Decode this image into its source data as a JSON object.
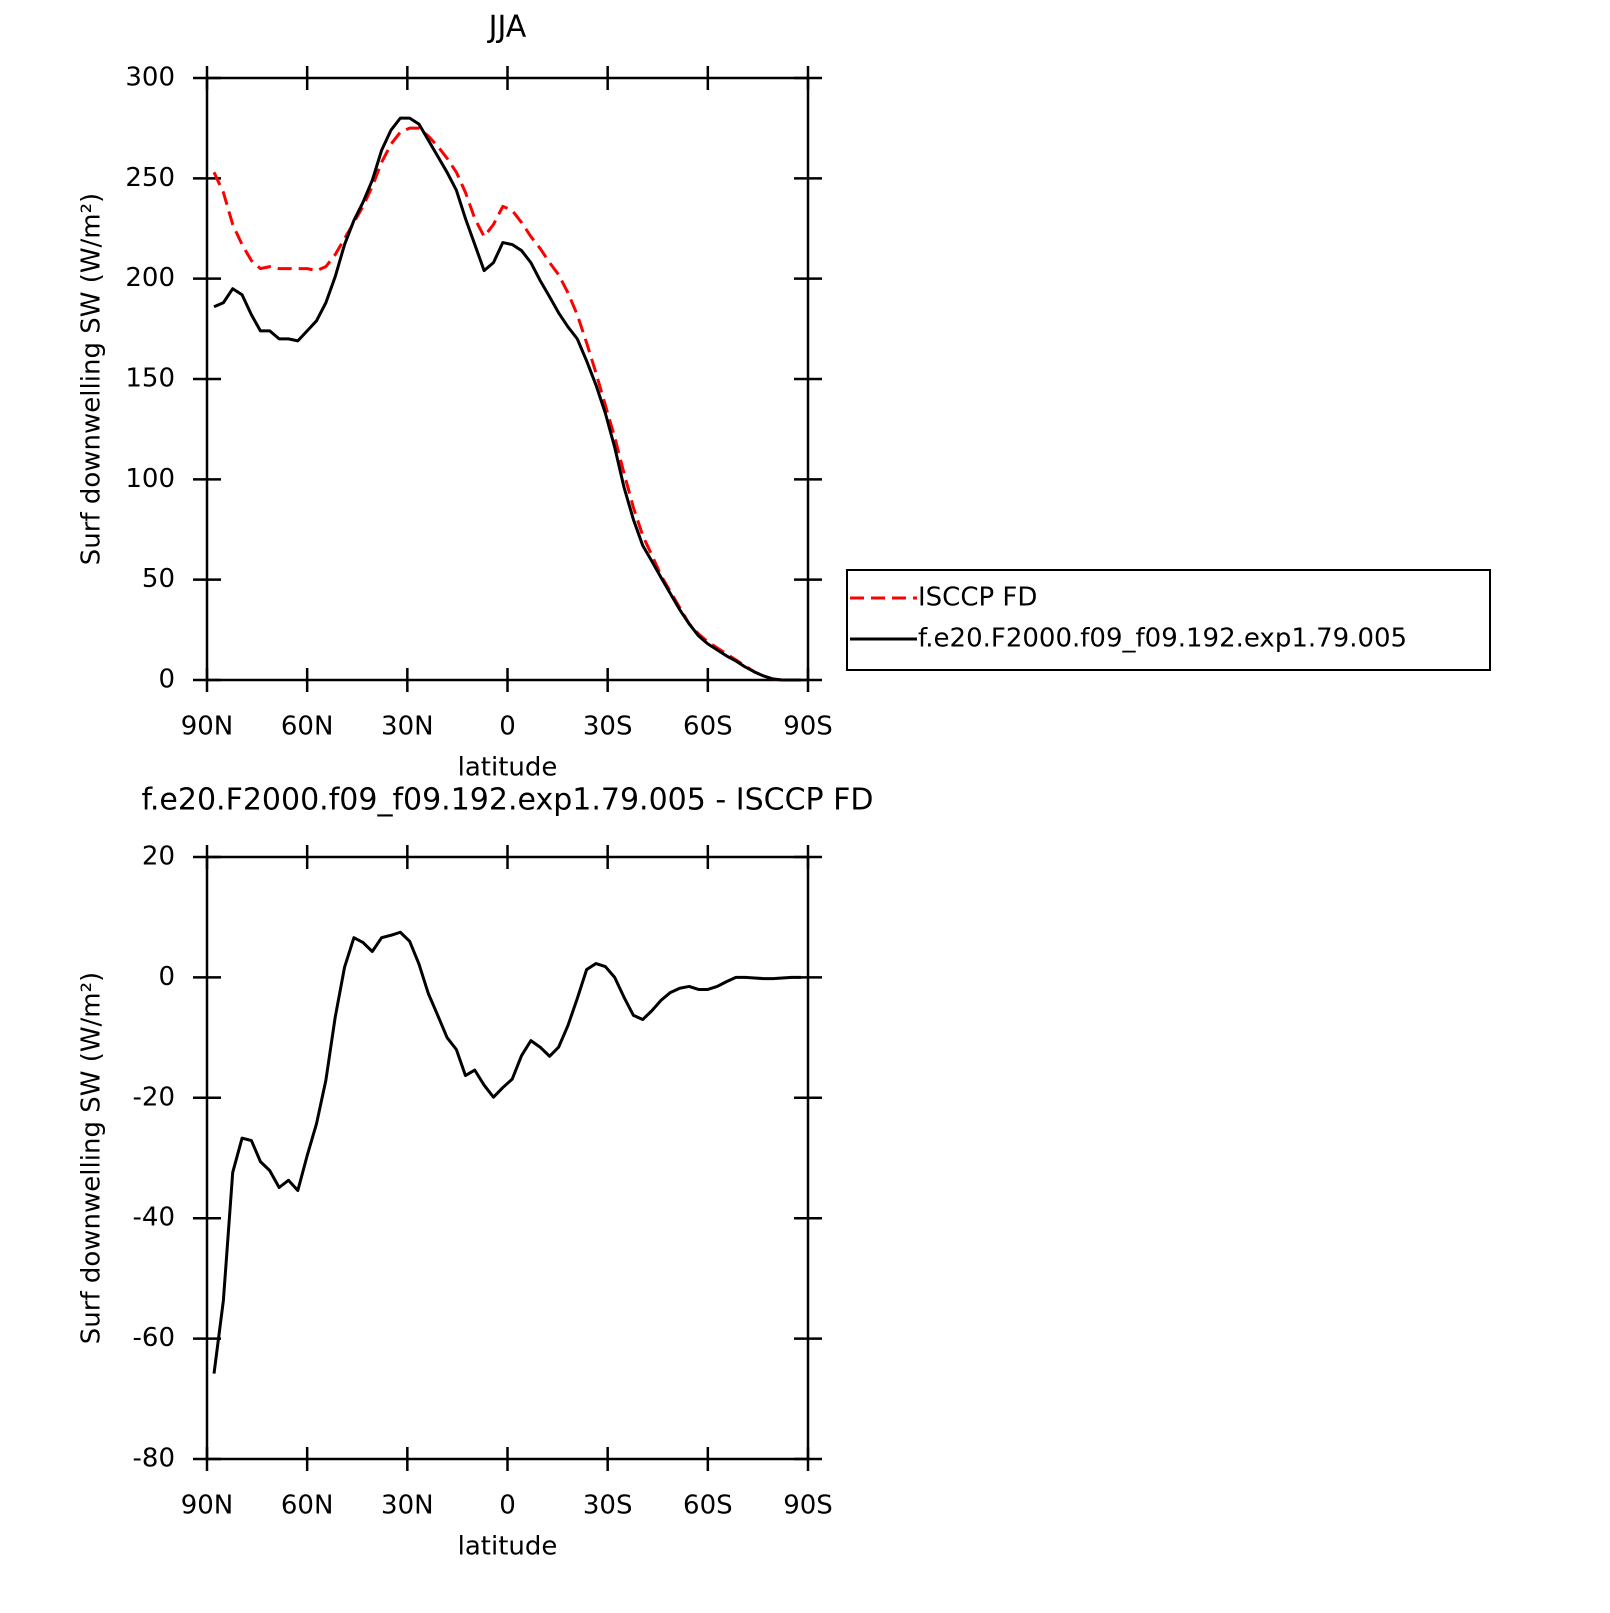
{
  "chart_data": [
    {
      "type": "line",
      "title": "JJA",
      "xlabel": "latitude",
      "ylabel": "Surf downwelling SW (W/m²)",
      "x": [
        87.9,
        85.1,
        82.3,
        79.5,
        76.7,
        74,
        71.2,
        68.4,
        65.6,
        62.8,
        60,
        57.2,
        54.4,
        51.6,
        48.8,
        46,
        43.3,
        40.5,
        37.7,
        34.9,
        32.1,
        29.3,
        26.5,
        23.7,
        20.9,
        18.1,
        15.3,
        12.6,
        9.8,
        7,
        4.2,
        1.4,
        -1.4,
        -4.2,
        -7,
        -9.8,
        -12.6,
        -15.3,
        -18.1,
        -20.9,
        -23.7,
        -26.5,
        -29.3,
        -32.1,
        -34.9,
        -37.7,
        -40.5,
        -43.3,
        -46,
        -48.8,
        -51.6,
        -54.4,
        -57.2,
        -60,
        -62.8,
        -65.6,
        -68.4,
        -71.2,
        -74,
        -76.7,
        -79.5,
        -82.3,
        -85.1,
        -87.9
      ],
      "series": [
        {
          "name": "ISCCP FD",
          "color": "#ff0000",
          "dash": "dashed",
          "values": [
            253,
            243,
            227,
            217,
            209,
            205,
            206,
            205,
            205,
            205,
            205,
            204,
            206,
            212,
            220,
            228,
            236,
            246,
            258,
            267,
            273,
            275,
            275,
            271,
            266,
            260,
            253,
            243,
            230,
            221,
            227,
            236,
            234,
            228,
            221,
            215,
            208,
            202,
            193,
            182,
            168,
            153,
            137,
            121,
            103,
            86,
            72,
            62,
            52,
            44,
            36,
            28,
            23,
            19,
            16,
            13,
            10,
            7,
            4,
            2,
            0.5,
            0,
            0,
            0
          ]
        },
        {
          "name": "f.e20.F2000.f09_f09.192.exp1.79.005",
          "color": "#000000",
          "dash": "solid",
          "values": [
            186,
            188,
            195,
            192,
            182,
            174,
            174,
            170,
            170,
            169,
            174,
            179,
            188,
            201,
            217,
            229,
            238,
            249,
            264,
            274,
            280,
            280,
            277,
            269,
            261,
            253,
            244,
            230,
            217,
            204,
            208,
            218,
            217,
            214,
            208,
            199,
            191,
            183,
            176,
            170,
            159,
            147,
            133,
            116,
            96,
            80,
            67,
            59,
            51,
            43,
            35,
            28,
            22,
            18,
            15,
            12,
            9.5,
            6.5,
            4,
            2,
            0.5,
            0,
            0,
            0
          ]
        }
      ],
      "xlim": [
        90,
        -90
      ],
      "xticks": [
        {
          "value": 90,
          "label": "90N"
        },
        {
          "value": 60,
          "label": "60N"
        },
        {
          "value": 30,
          "label": "30N"
        },
        0,
        {
          "value": -30,
          "label": "30S"
        },
        {
          "value": -60,
          "label": "60S"
        },
        {
          "value": -90,
          "label": "90S"
        }
      ],
      "ylim": [
        0,
        300
      ],
      "yticks": [
        0,
        50,
        100,
        150,
        200,
        250,
        300
      ],
      "legend": "right"
    },
    {
      "type": "line",
      "title": "f.e20.F2000.f09_f09.192.exp1.79.005 - ISCCP FD",
      "xlabel": "latitude",
      "ylabel": "Surf downwelling SW (W/m²)",
      "x": [
        87.9,
        85.1,
        82.3,
        79.5,
        76.7,
        74,
        71.2,
        68.4,
        65.6,
        62.8,
        60,
        57.2,
        54.4,
        51.6,
        48.8,
        46,
        43.3,
        40.5,
        37.7,
        34.9,
        32.1,
        29.3,
        26.5,
        23.7,
        20.9,
        18.1,
        15.3,
        12.6,
        9.8,
        7,
        4.2,
        1.4,
        -1.4,
        -4.2,
        -7,
        -9.8,
        -12.6,
        -15.3,
        -18.1,
        -20.9,
        -23.7,
        -26.5,
        -29.3,
        -32.1,
        -34.9,
        -37.7,
        -40.5,
        -43.3,
        -46,
        -48.8,
        -51.6,
        -54.4,
        -57.2,
        -60,
        -62.8,
        -65.6,
        -68.4,
        -71.2,
        -74,
        -76.7,
        -79.5,
        -82.3,
        -85.1,
        -87.9
      ],
      "series": [
        {
          "color": "#000000",
          "dash": "solid",
          "values": [
            -65.8,
            -53.7,
            -32.4,
            -26.7,
            -27.1,
            -30.6,
            -32.1,
            -34.9,
            -33.7,
            -35.4,
            -29.6,
            -24.3,
            -17.1,
            -6.6,
            1.7,
            6.6,
            5.8,
            4.3,
            6.6,
            7,
            7.5,
            6,
            2.2,
            -2.7,
            -6.3,
            -10,
            -12,
            -16.3,
            -15.4,
            -17.9,
            -19.9,
            -18.3,
            -16.9,
            -13,
            -10.5,
            -11.6,
            -13.1,
            -11.6,
            -8,
            -3.5,
            1.3,
            2.3,
            1.8,
            0,
            -3.3,
            -6.3,
            -7,
            -5.5,
            -3.8,
            -2.5,
            -1.8,
            -1.5,
            -2,
            -2,
            -1.5,
            -0.7,
            0,
            0,
            -0.1,
            -0.2,
            -0.2,
            -0.1,
            0,
            0
          ]
        }
      ],
      "xlim": [
        90,
        -90
      ],
      "xticks": [
        {
          "value": 90,
          "label": "90N"
        },
        {
          "value": 60,
          "label": "60N"
        },
        {
          "value": 30,
          "label": "30N"
        },
        0,
        {
          "value": -30,
          "label": "30S"
        },
        {
          "value": -60,
          "label": "60S"
        },
        {
          "value": -90,
          "label": "90S"
        }
      ],
      "ylim": [
        -80,
        20
      ],
      "yticks": [
        -80,
        -60,
        -40,
        -20,
        0,
        20
      ]
    }
  ]
}
